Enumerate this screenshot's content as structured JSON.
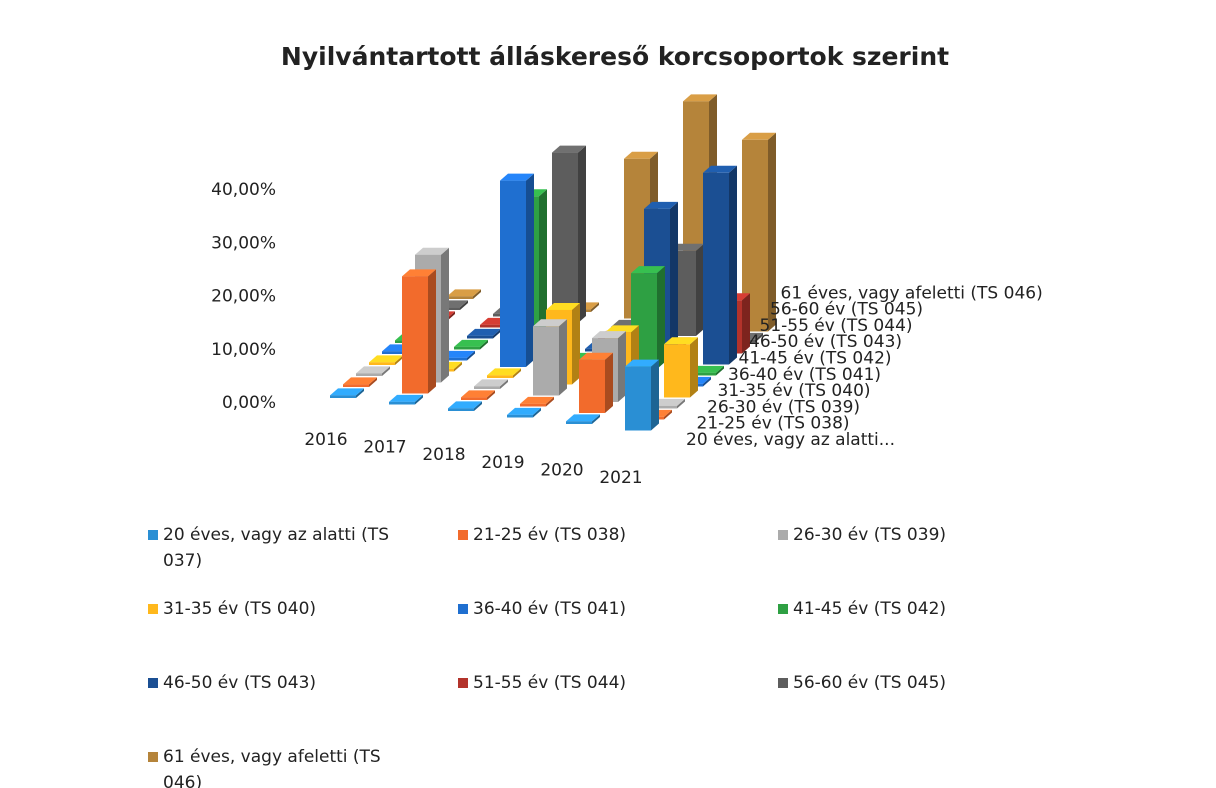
{
  "chart_data": {
    "type": "bar3d",
    "title": "Nyilvántartott álláskereső korcsoportok szerint",
    "categories": [
      "2016",
      "2017",
      "2018",
      "2019",
      "2020",
      "2021"
    ],
    "depth_labels": [
      "20 éves, vagy az alatti...",
      "21-25 év (TS 038)",
      "26-30 év (TS 039)",
      "31-35 év (TS 040)",
      "36-40 év (TS 041)",
      "41-45 év (TS 042)",
      "46-50 év (TS 043)",
      "51-55 év (TS 044)",
      "56-60 év (TS 045)",
      "61 éves, vagy afeletti (TS 046)"
    ],
    "series": [
      {
        "name": "20 éves, vagy az alatti (TS 037)",
        "color": "#2a8fd4",
        "values": [
          0.5,
          0.5,
          0.5,
          0.5,
          0.5,
          12
        ]
      },
      {
        "name": "21-25 év (TS 038)",
        "color": "#f26b2c",
        "values": [
          0.5,
          22,
          0.5,
          0.5,
          10,
          0.5
        ]
      },
      {
        "name": "26-30 év (TS 039)",
        "color": "#ababab",
        "values": [
          0.5,
          24,
          0.5,
          13,
          12,
          0.5
        ]
      },
      {
        "name": "31-35 év (TS 040)",
        "color": "#ffb81c",
        "values": [
          0.5,
          0.5,
          0.5,
          14,
          11,
          10
        ]
      },
      {
        "name": "36-40 év (TS 041)",
        "color": "#1f6fd0",
        "values": [
          0.5,
          0.5,
          35,
          0.5,
          0.5,
          0.5
        ]
      },
      {
        "name": "41-45 év (TS 042)",
        "color": "#2ea043",
        "values": [
          0.5,
          0.5,
          30,
          0.5,
          18,
          0.5
        ]
      },
      {
        "name": "46-50 év (TS 043)",
        "color": "#1b4f93",
        "values": [
          0.5,
          0.5,
          0.5,
          0.5,
          28,
          36
        ]
      },
      {
        "name": "51-55 év (TS 044)",
        "color": "#b3332b",
        "values": [
          0.5,
          0.5,
          0.5,
          0.5,
          0.5,
          10
        ]
      },
      {
        "name": "56-60 év (TS 045)",
        "color": "#5d5d5d",
        "values": [
          0.5,
          0.5,
          32,
          0.5,
          16,
          0.5
        ]
      },
      {
        "name": "61 éves, vagy afeletti (TS 046)",
        "color": "#b5843a",
        "values": [
          0.5,
          0.5,
          0.5,
          30,
          42,
          36
        ]
      }
    ],
    "ylim": [
      0,
      40
    ],
    "yticks": [
      {
        "value": 0,
        "label": "0,00%"
      },
      {
        "value": 10,
        "label": "10,00%"
      },
      {
        "value": 20,
        "label": "20,00%"
      },
      {
        "value": 30,
        "label": "30,00%"
      },
      {
        "value": 40,
        "label": "40,00%"
      }
    ]
  }
}
